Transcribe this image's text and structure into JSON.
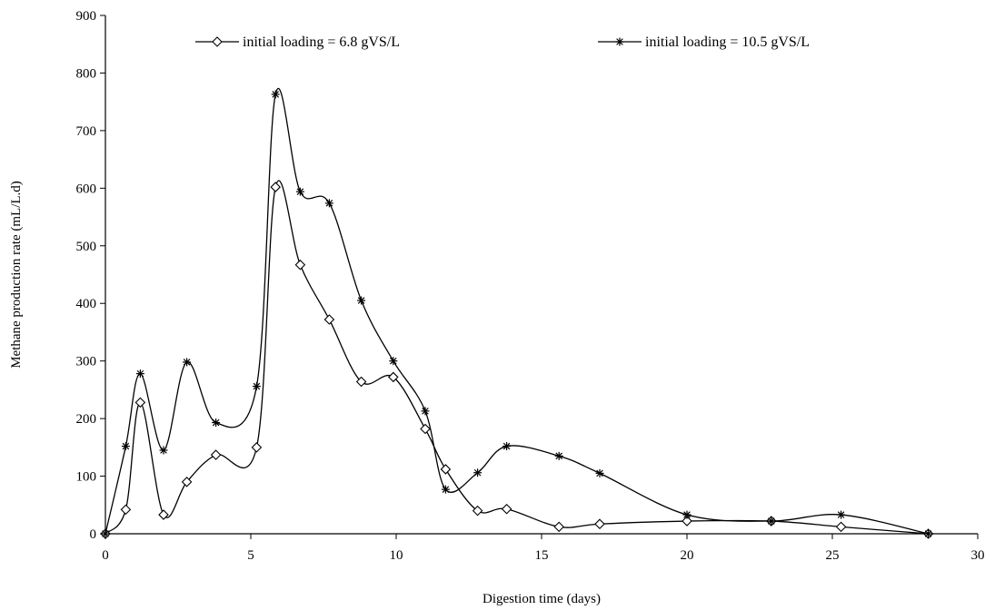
{
  "chart_data": {
    "type": "line",
    "title": "",
    "xlabel": "Digestion time (days)",
    "ylabel": "Methane production rate (mL/L.d)",
    "xlim": [
      0,
      30
    ],
    "ylim": [
      0,
      900
    ],
    "xticks": [
      "0",
      "5",
      "10",
      "15",
      "20",
      "25",
      "30"
    ],
    "yticks": [
      "0",
      "100",
      "200",
      "300",
      "400",
      "500",
      "600",
      "700",
      "800",
      "900"
    ],
    "grid": false,
    "legend_position": "top",
    "series": [
      {
        "name": "initial loading = 6.8 gVS/L",
        "marker": "diamond",
        "color": "#000000",
        "x": [
          0,
          0.7,
          1.2,
          2.0,
          2.8,
          3.8,
          5.2,
          5.85,
          6.7,
          7.7,
          8.8,
          9.9,
          11.0,
          11.7,
          12.8,
          13.8,
          15.6,
          17.0,
          20.0,
          22.9,
          25.3,
          28.3
        ],
        "y": [
          0,
          42,
          228,
          33,
          90,
          137,
          150,
          602,
          467,
          372,
          264,
          272,
          182,
          112,
          40,
          43,
          12,
          17,
          22,
          22,
          12,
          0
        ]
      },
      {
        "name": "initial loading = 10.5 gVS/L",
        "marker": "asterisk",
        "color": "#000000",
        "x": [
          0,
          0.7,
          1.2,
          2.0,
          2.8,
          3.8,
          5.2,
          5.85,
          6.7,
          7.7,
          8.8,
          9.9,
          11.0,
          11.7,
          12.8,
          13.8,
          15.6,
          17.0,
          20.0,
          22.9,
          25.3,
          28.3
        ],
        "y": [
          0,
          152,
          278,
          145,
          298,
          193,
          256,
          763,
          594,
          574,
          405,
          300,
          213,
          77,
          106,
          152,
          135,
          105,
          33,
          22,
          33,
          0
        ]
      }
    ]
  }
}
